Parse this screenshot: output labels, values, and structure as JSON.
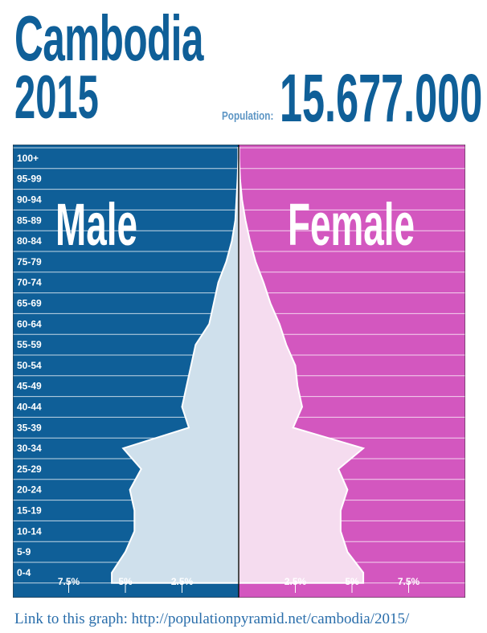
{
  "header": {
    "country": "Cambodia",
    "year": "2015",
    "population_label": "Population:",
    "population_value": "15.677.000"
  },
  "footer": {
    "link_text": "Link to this graph: http://populationpyramid.net/cambodia/2015/"
  },
  "colors": {
    "male_bg": "#0f5f98",
    "female_bg": "#d357bf",
    "male_fill": "#cfe0ec",
    "female_fill": "#f5dcef",
    "title": "#0f5f98"
  },
  "chart_data": {
    "type": "bar",
    "orientation": "horizontal",
    "style": "population-pyramid",
    "series": [
      {
        "name": "Male",
        "values": [
          5.6,
          5.0,
          4.6,
          4.6,
          4.8,
          4.3,
          5.1,
          2.2,
          2.5,
          2.3,
          2.1,
          1.9,
          1.3,
          1.1,
          0.9,
          0.55,
          0.3,
          0.15,
          0.1,
          0.05,
          0.02
        ]
      },
      {
        "name": "Female",
        "values": [
          5.5,
          4.8,
          4.5,
          4.5,
          4.8,
          4.4,
          5.5,
          2.4,
          2.8,
          2.6,
          2.5,
          2.1,
          1.8,
          1.4,
          1.1,
          0.75,
          0.5,
          0.3,
          0.15,
          0.06,
          0.02
        ]
      }
    ],
    "categories": [
      "0-4",
      "5-9",
      "10-14",
      "15-19",
      "20-24",
      "25-29",
      "30-34",
      "35-39",
      "40-44",
      "45-49",
      "50-54",
      "55-59",
      "60-64",
      "65-69",
      "70-74",
      "75-79",
      "80-84",
      "85-89",
      "90-94",
      "95-99",
      "100+"
    ],
    "x_ticks_left": [
      "7.5%",
      "5%",
      "2.5%"
    ],
    "x_ticks_right": [
      "2.5%",
      "5%",
      "7.5%"
    ],
    "x_tick_values": [
      7.5,
      5,
      2.5
    ],
    "xlim": [
      0,
      10
    ]
  }
}
